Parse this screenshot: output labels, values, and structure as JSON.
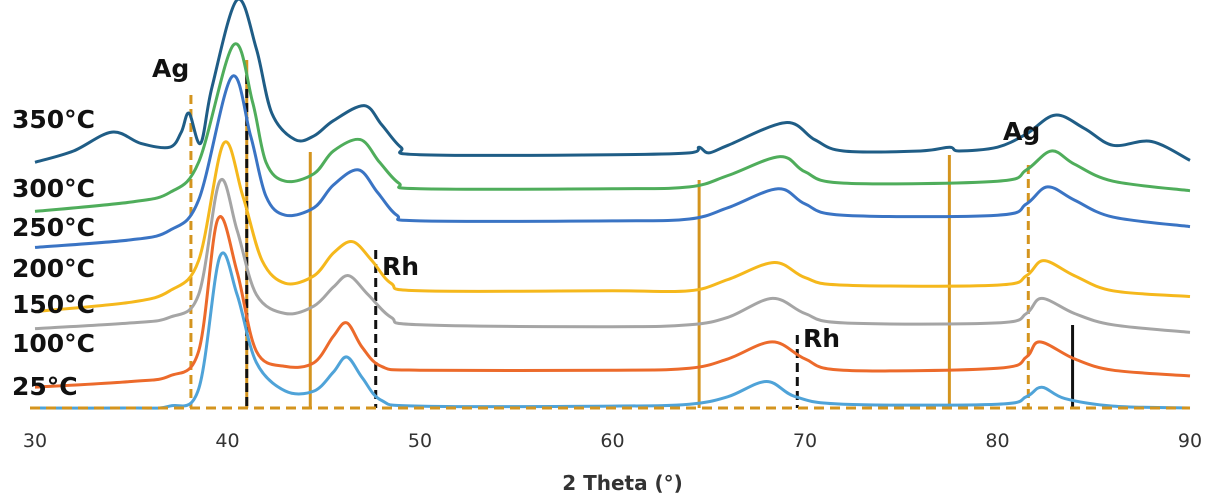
{
  "chart_data": {
    "type": "line",
    "xlabel": "2 Theta (°)",
    "xlim": [
      30,
      90
    ],
    "x_ticks": [
      "30",
      "40",
      "50",
      "60",
      "70",
      "80",
      "90"
    ],
    "series": [
      {
        "name": "25°C",
        "color": "#4fa3d8",
        "points": [
          [
            30,
            0.0
          ],
          [
            35,
            0.0
          ],
          [
            37,
            0.05
          ],
          [
            38.5,
            0.5
          ],
          [
            39.6,
            4.0
          ],
          [
            40.5,
            3.0
          ],
          [
            41.5,
            1.2
          ],
          [
            43,
            0.45
          ],
          [
            44.5,
            0.45
          ],
          [
            45.5,
            0.95
          ],
          [
            46.2,
            1.35
          ],
          [
            47,
            0.8
          ],
          [
            48,
            0.2
          ],
          [
            50,
            0.05
          ],
          [
            60,
            0.05
          ],
          [
            64,
            0.1
          ],
          [
            66,
            0.3
          ],
          [
            68,
            0.7
          ],
          [
            69.5,
            0.3
          ],
          [
            72,
            0.1
          ],
          [
            80,
            0.1
          ],
          [
            81.5,
            0.3
          ],
          [
            82.3,
            0.55
          ],
          [
            83.5,
            0.25
          ],
          [
            86,
            0.05
          ],
          [
            90,
            0.0
          ]
        ]
      },
      {
        "name": "100°C",
        "color": "#ec6a2b",
        "points": [
          [
            30,
            0.55
          ],
          [
            35,
            0.7
          ],
          [
            37,
            0.85
          ],
          [
            38.5,
            1.5
          ],
          [
            39.5,
            5.0
          ],
          [
            40.5,
            3.6
          ],
          [
            41.5,
            1.5
          ],
          [
            43,
            1.1
          ],
          [
            44.5,
            1.2
          ],
          [
            45.5,
            1.9
          ],
          [
            46.2,
            2.25
          ],
          [
            47,
            1.6
          ],
          [
            48,
            1.1
          ],
          [
            50,
            1.0
          ],
          [
            60,
            1.0
          ],
          [
            64,
            1.05
          ],
          [
            66,
            1.3
          ],
          [
            68.3,
            1.75
          ],
          [
            70,
            1.3
          ],
          [
            72,
            1.0
          ],
          [
            80,
            1.05
          ],
          [
            81.5,
            1.35
          ],
          [
            82.2,
            1.75
          ],
          [
            84,
            1.3
          ],
          [
            86,
            1.0
          ],
          [
            90,
            0.85
          ]
        ]
      },
      {
        "name": "150°C",
        "color": "#a5a5a5",
        "points": [
          [
            30,
            2.1
          ],
          [
            35,
            2.25
          ],
          [
            37,
            2.4
          ],
          [
            38.5,
            3.0
          ],
          [
            39.6,
            6.0
          ],
          [
            40.5,
            4.7
          ],
          [
            41.5,
            3.0
          ],
          [
            43,
            2.5
          ],
          [
            44.5,
            2.7
          ],
          [
            45.5,
            3.2
          ],
          [
            46.3,
            3.5
          ],
          [
            47.3,
            3.0
          ],
          [
            48.5,
            2.4
          ],
          [
            50,
            2.2
          ],
          [
            60,
            2.15
          ],
          [
            64,
            2.2
          ],
          [
            66,
            2.4
          ],
          [
            68.3,
            2.9
          ],
          [
            70,
            2.5
          ],
          [
            72,
            2.25
          ],
          [
            80,
            2.25
          ],
          [
            81.5,
            2.5
          ],
          [
            82.3,
            2.9
          ],
          [
            84,
            2.5
          ],
          [
            86,
            2.2
          ],
          [
            90,
            2.0
          ]
        ]
      },
      {
        "name": "200°C",
        "color": "#f5b81c",
        "points": [
          [
            30,
            2.55
          ],
          [
            35,
            2.8
          ],
          [
            37,
            3.1
          ],
          [
            38.5,
            3.9
          ],
          [
            39.8,
            7.0
          ],
          [
            40.8,
            5.6
          ],
          [
            41.8,
            3.9
          ],
          [
            43,
            3.3
          ],
          [
            44.5,
            3.5
          ],
          [
            45.5,
            4.1
          ],
          [
            46.5,
            4.4
          ],
          [
            47.5,
            3.9
          ],
          [
            48.5,
            3.3
          ],
          [
            50,
            3.1
          ],
          [
            60,
            3.1
          ],
          [
            64,
            3.1
          ],
          [
            66,
            3.4
          ],
          [
            68.4,
            3.85
          ],
          [
            70,
            3.45
          ],
          [
            72,
            3.25
          ],
          [
            80,
            3.25
          ],
          [
            81.5,
            3.5
          ],
          [
            82.4,
            3.9
          ],
          [
            84,
            3.5
          ],
          [
            86,
            3.1
          ],
          [
            90,
            2.95
          ]
        ]
      },
      {
        "name": "250°C",
        "color": "#3a74c4",
        "points": [
          [
            30,
            4.25
          ],
          [
            35,
            4.45
          ],
          [
            37,
            4.7
          ],
          [
            38.5,
            5.5
          ],
          [
            40.2,
            8.75
          ],
          [
            41.2,
            7.2
          ],
          [
            42,
            5.6
          ],
          [
            43,
            5.1
          ],
          [
            44.5,
            5.3
          ],
          [
            45.5,
            5.9
          ],
          [
            46.8,
            6.3
          ],
          [
            47.8,
            5.7
          ],
          [
            48.8,
            5.1
          ],
          [
            50,
            4.95
          ],
          [
            60,
            4.95
          ],
          [
            64,
            5.0
          ],
          [
            66,
            5.3
          ],
          [
            68.6,
            5.8
          ],
          [
            70,
            5.4
          ],
          [
            72,
            5.1
          ],
          [
            80,
            5.1
          ],
          [
            81.5,
            5.4
          ],
          [
            82.6,
            5.85
          ],
          [
            84,
            5.5
          ],
          [
            86,
            5.05
          ],
          [
            90,
            4.8
          ]
        ]
      },
      {
        "name": "300°C",
        "color": "#4fad5b",
        "points": [
          [
            30,
            5.2
          ],
          [
            35,
            5.45
          ],
          [
            37,
            5.7
          ],
          [
            38.5,
            6.5
          ],
          [
            40.3,
            9.6
          ],
          [
            41.3,
            8.1
          ],
          [
            42,
            6.5
          ],
          [
            43,
            6.0
          ],
          [
            44.5,
            6.2
          ],
          [
            45.5,
            6.8
          ],
          [
            46.9,
            7.1
          ],
          [
            47.9,
            6.5
          ],
          [
            48.9,
            5.95
          ],
          [
            50,
            5.8
          ],
          [
            60,
            5.8
          ],
          [
            64,
            5.85
          ],
          [
            66,
            6.15
          ],
          [
            68.7,
            6.65
          ],
          [
            70,
            6.25
          ],
          [
            72,
            5.95
          ],
          [
            80,
            6.0
          ],
          [
            81.5,
            6.3
          ],
          [
            82.8,
            6.8
          ],
          [
            84,
            6.45
          ],
          [
            86,
            6.0
          ],
          [
            90,
            5.75
          ]
        ]
      },
      {
        "name": "350°C",
        "color": "#1f5d86",
        "points": [
          [
            30,
            6.5
          ],
          [
            32,
            6.8
          ],
          [
            34,
            7.3
          ],
          [
            35.5,
            7.0
          ],
          [
            37,
            6.9
          ],
          [
            37.6,
            7.3
          ],
          [
            38,
            7.8
          ],
          [
            38.6,
            7.0
          ],
          [
            39.2,
            8.5
          ],
          [
            40.5,
            10.8
          ],
          [
            41.5,
            9.5
          ],
          [
            42.3,
            7.8
          ],
          [
            43.5,
            7.1
          ],
          [
            44.5,
            7.2
          ],
          [
            45.5,
            7.6
          ],
          [
            47.1,
            8.0
          ],
          [
            48,
            7.5
          ],
          [
            49,
            6.9
          ],
          [
            50,
            6.7
          ],
          [
            60,
            6.7
          ],
          [
            64,
            6.75
          ],
          [
            64.5,
            6.9
          ],
          [
            65,
            6.75
          ],
          [
            66,
            6.95
          ],
          [
            69,
            7.55
          ],
          [
            70.5,
            7.1
          ],
          [
            72,
            6.8
          ],
          [
            76,
            6.8
          ],
          [
            77.5,
            6.9
          ],
          [
            78,
            6.8
          ],
          [
            80,
            6.9
          ],
          [
            81.5,
            7.25
          ],
          [
            83,
            7.75
          ],
          [
            84.5,
            7.4
          ],
          [
            86,
            6.95
          ],
          [
            88,
            7.05
          ],
          [
            90,
            6.55
          ]
        ]
      }
    ],
    "reference_lines": [
      {
        "x": 38.1,
        "label": "Ag",
        "color": "#d4941e",
        "style": "dashed"
      },
      {
        "x": 41.0,
        "label": "",
        "color": "#d4941e",
        "style": "solid"
      },
      {
        "x": 41.0,
        "label": "",
        "color": "#111111",
        "style": "dashed"
      },
      {
        "x": 44.3,
        "label": "",
        "color": "#d4941e",
        "style": "solid"
      },
      {
        "x": 47.7,
        "label": "Rh",
        "color": "#111111",
        "style": "dashed"
      },
      {
        "x": 64.5,
        "label": "",
        "color": "#d4941e",
        "style": "solid"
      },
      {
        "x": 69.6,
        "label": "Rh",
        "color": "#111111",
        "style": "dashed"
      },
      {
        "x": 77.5,
        "label": "",
        "color": "#d4941e",
        "style": "solid"
      },
      {
        "x": 81.6,
        "label": "Ag",
        "color": "#d4941e",
        "style": "dashed"
      },
      {
        "x": 83.9,
        "label": "",
        "color": "#111111",
        "style": "solid"
      }
    ],
    "grid": false,
    "legend": "labels at left"
  }
}
